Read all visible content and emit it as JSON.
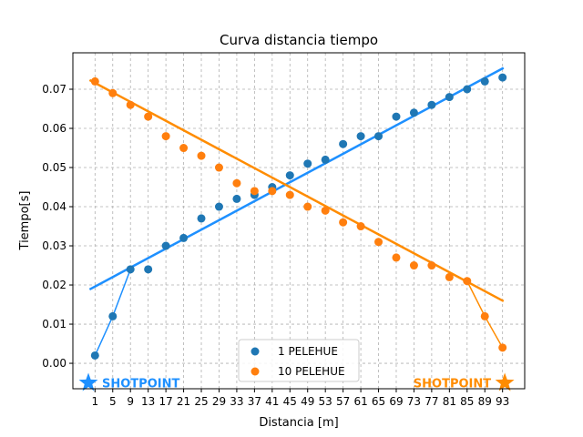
{
  "chart_data": {
    "type": "scatter",
    "title": "Curva distancia tiempo",
    "xlabel": "Distancia [m]",
    "ylabel": "Tiempo[s]",
    "xlim": [
      -4,
      98
    ],
    "ylim": [
      -0.0065,
      0.0793
    ],
    "x_ticks": [
      1,
      5,
      9,
      13,
      17,
      21,
      25,
      29,
      33,
      37,
      41,
      45,
      49,
      53,
      57,
      61,
      65,
      69,
      73,
      77,
      81,
      85,
      89,
      93
    ],
    "y_ticks": [
      0.0,
      0.01,
      0.02,
      0.03,
      0.04,
      0.05,
      0.06,
      0.07
    ],
    "y_tick_labels": [
      "0.00",
      "0.01",
      "0.02",
      "0.03",
      "0.04",
      "0.05",
      "0.06",
      "0.07"
    ],
    "grid": true,
    "legend_position": "bottom-center",
    "series": [
      {
        "name": "1 PELEHUE",
        "color": "#1f77b4",
        "x": [
          1,
          5,
          9,
          13,
          17,
          21,
          25,
          29,
          33,
          37,
          41,
          45,
          49,
          53,
          57,
          61,
          65,
          69,
          73,
          77,
          81,
          85,
          89,
          93
        ],
        "y": [
          0.002,
          0.012,
          0.024,
          0.024,
          0.03,
          0.032,
          0.037,
          0.04,
          0.042,
          0.043,
          0.045,
          0.048,
          0.051,
          0.052,
          0.056,
          0.058,
          0.058,
          0.063,
          0.064,
          0.066,
          0.068,
          0.07,
          0.072,
          0.073
        ]
      },
      {
        "name": "10 PELEHUE",
        "color": "#ff7f0e",
        "x": [
          1,
          5,
          9,
          13,
          17,
          21,
          25,
          29,
          33,
          37,
          41,
          45,
          49,
          53,
          57,
          61,
          65,
          69,
          73,
          77,
          81,
          85,
          89,
          93
        ],
        "y": [
          0.072,
          0.069,
          0.066,
          0.063,
          0.058,
          0.055,
          0.053,
          0.05,
          0.046,
          0.044,
          0.044,
          0.043,
          0.04,
          0.039,
          0.036,
          0.035,
          0.031,
          0.027,
          0.025,
          0.025,
          0.022,
          0.021,
          0.012,
          0.004
        ]
      }
    ],
    "fit_lines": [
      {
        "color": "#1e90ff",
        "x": [
          0,
          93
        ],
        "y": [
          0.019,
          0.0753
        ]
      },
      {
        "color": "#ff8c00",
        "x": [
          0,
          93
        ],
        "y": [
          0.0722,
          0.016
        ]
      }
    ],
    "connector_lines": [
      {
        "color": "#1e90ff",
        "x": [
          1,
          5,
          9
        ],
        "y": [
          0.002,
          0.012,
          0.024
        ]
      },
      {
        "color": "#ff8c00",
        "x": [
          85,
          89,
          93
        ],
        "y": [
          0.021,
          0.012,
          0.004
        ]
      }
    ],
    "shotpoints": [
      {
        "label": "SHOTPOINT",
        "color": "#1e90ff",
        "x": -0.5,
        "y": -0.005,
        "side": "right"
      },
      {
        "label": "SHOTPOINT",
        "color": "#ff8c00",
        "x": 93.5,
        "y": -0.005,
        "side": "left"
      }
    ]
  }
}
